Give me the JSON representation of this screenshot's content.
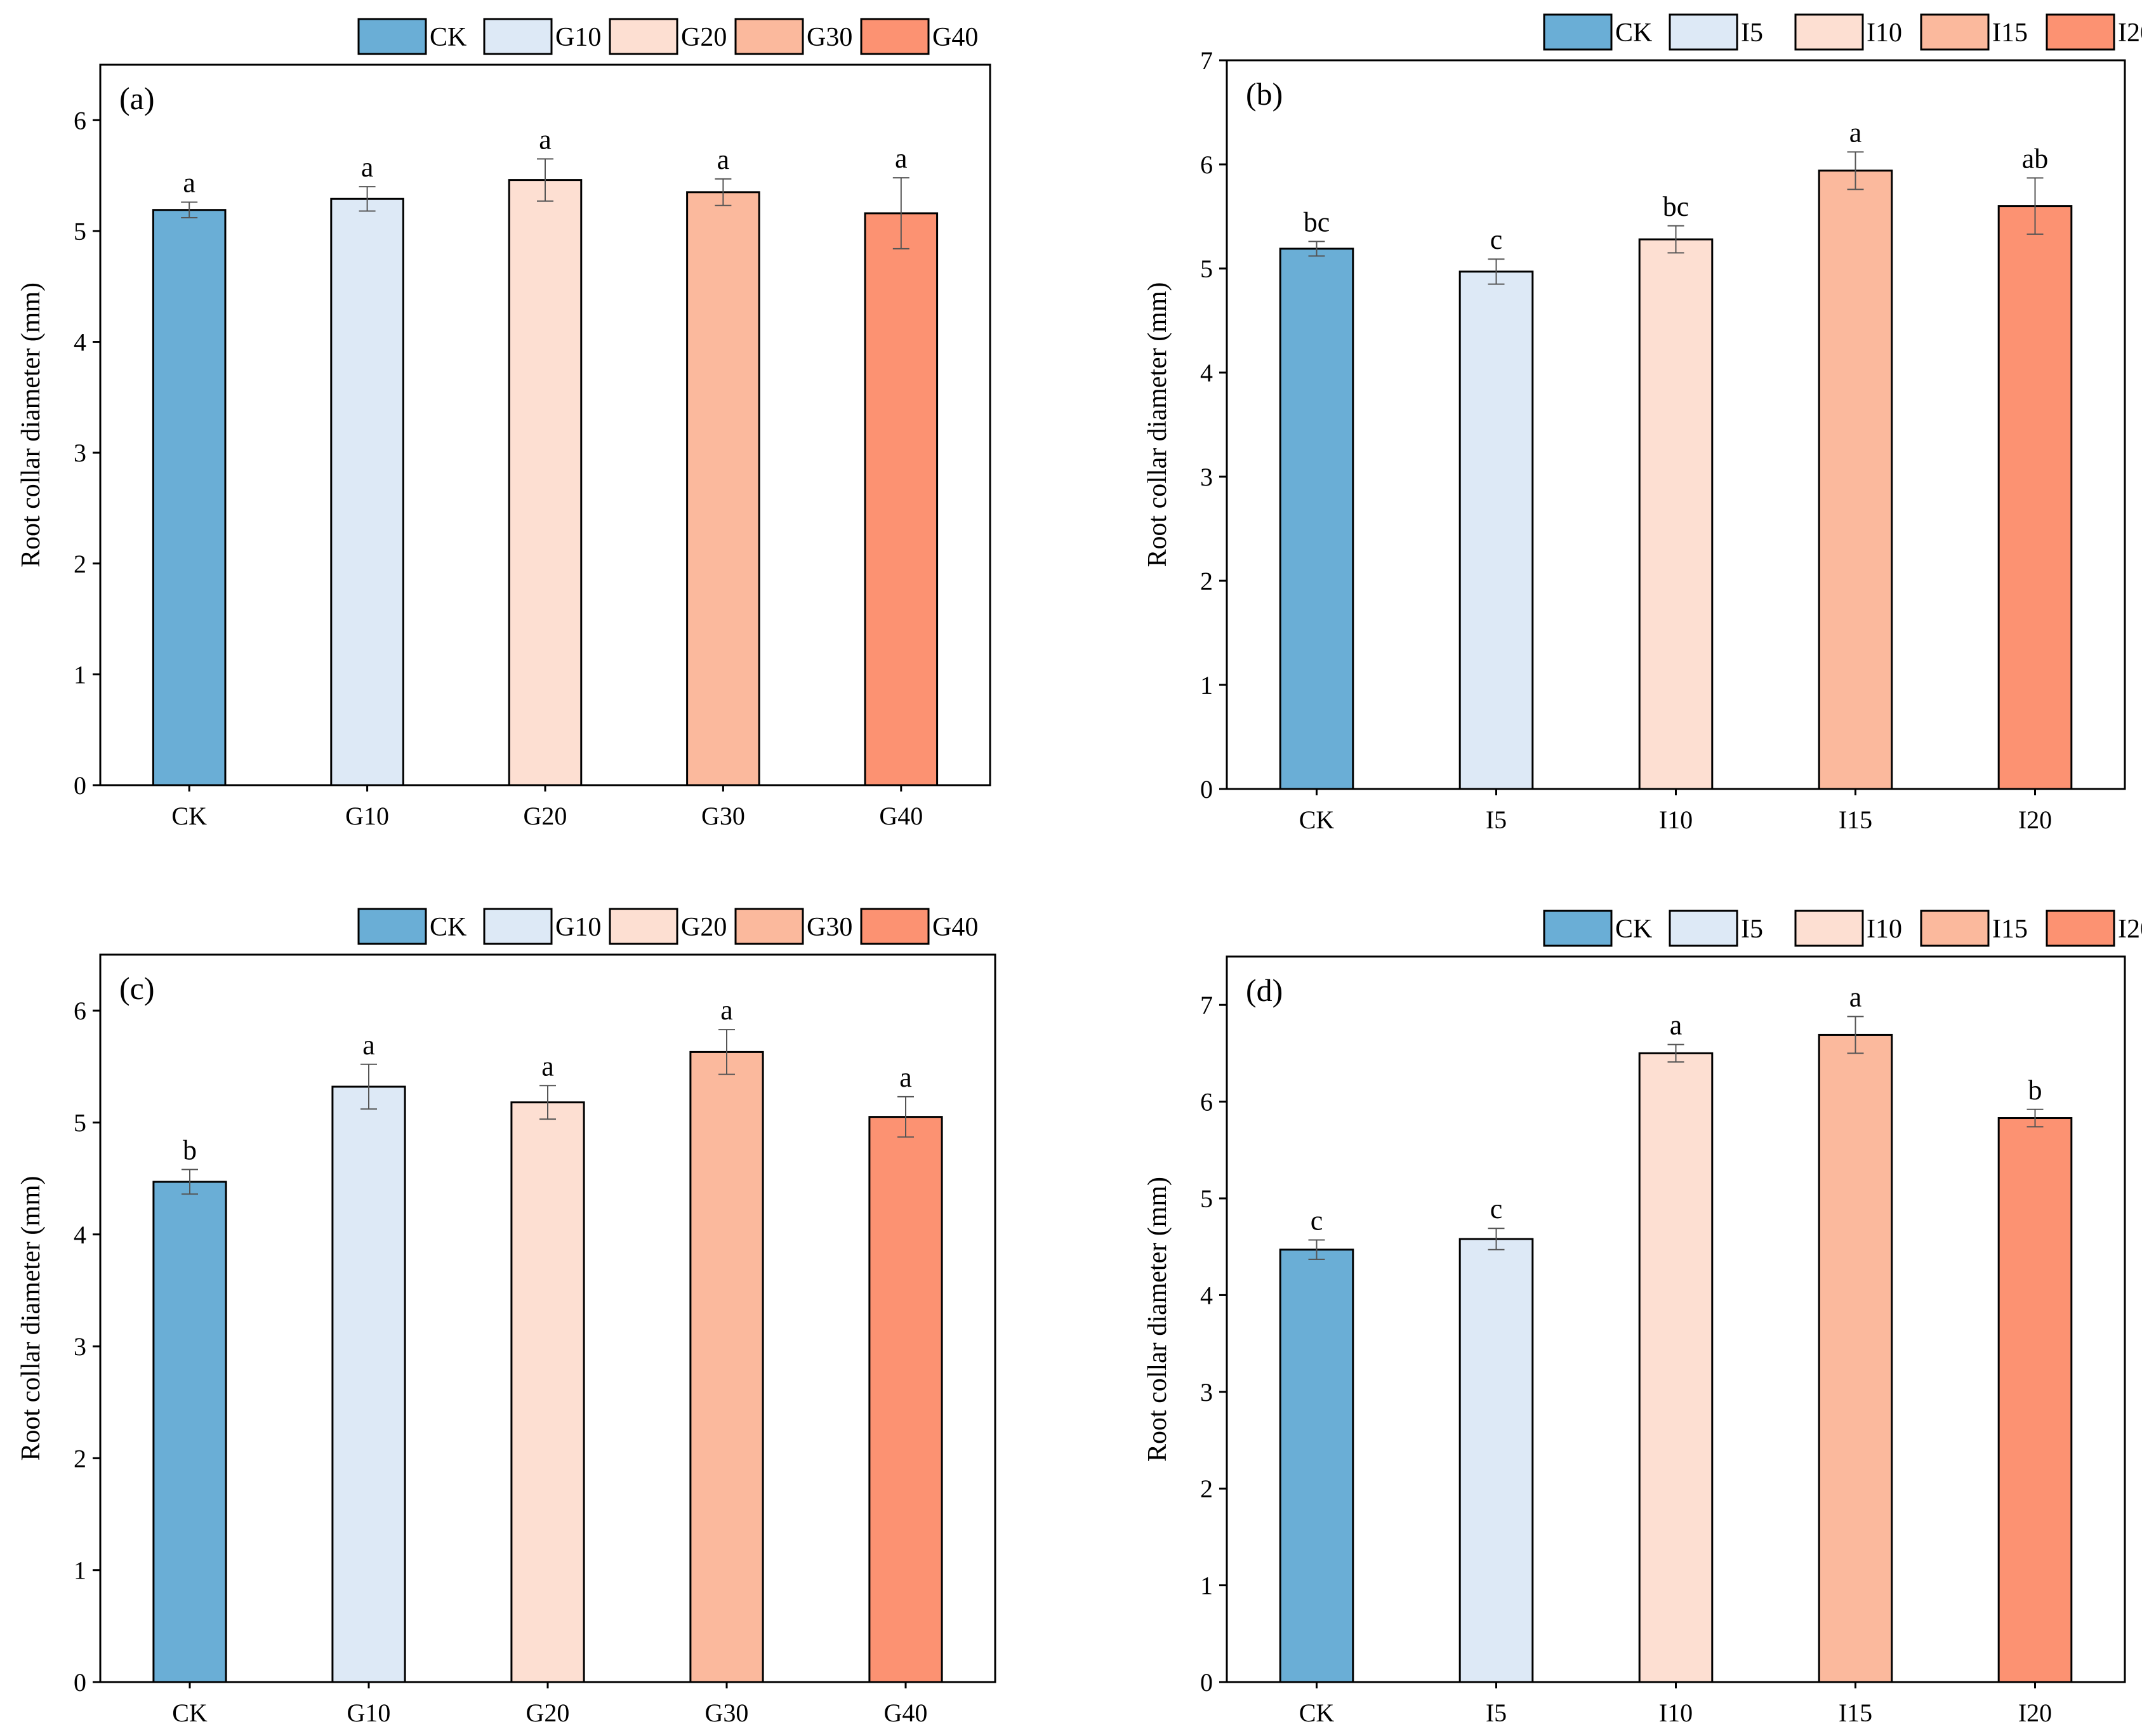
{
  "figure": {
    "colors": [
      "#6aaed6",
      "#dde9f6",
      "#fddfd2",
      "#fbb99d",
      "#fc9272"
    ]
  },
  "chart_data": [
    {
      "type": "bar",
      "panel_label": "(a)",
      "legend_position": "top",
      "categories": [
        "CK",
        "G10",
        "G20",
        "G30",
        "G40"
      ],
      "values": [
        5.19,
        5.29,
        5.46,
        5.35,
        5.16
      ],
      "errors": [
        0.07,
        0.11,
        0.19,
        0.12,
        0.32
      ],
      "significance": [
        "a",
        "a",
        "a",
        "a",
        "a"
      ],
      "ylabel": "Root collar diameter (mm)",
      "xlabel": "",
      "ylim": [
        0,
        6.5
      ],
      "yticks": [
        0,
        1,
        2,
        3,
        4,
        5,
        6
      ],
      "grid": false
    },
    {
      "type": "bar",
      "panel_label": "(b)",
      "legend_position": "top",
      "categories": [
        "CK",
        "I5",
        "I10",
        "I15",
        "I20"
      ],
      "values": [
        5.19,
        4.97,
        5.28,
        5.94,
        5.6
      ],
      "errors": [
        0.07,
        0.12,
        0.13,
        0.18,
        0.27
      ],
      "significance": [
        "bc",
        "c",
        "bc",
        "a",
        "ab"
      ],
      "ylabel": "Root collar diameter (mm)",
      "xlabel": "",
      "ylim": [
        0,
        7
      ],
      "yticks": [
        0,
        1,
        2,
        3,
        4,
        5,
        6,
        7
      ],
      "grid": false
    },
    {
      "type": "bar",
      "panel_label": "(c)",
      "legend_position": "top",
      "categories": [
        "CK",
        "G10",
        "G20",
        "G30",
        "G40"
      ],
      "values": [
        4.47,
        5.32,
        5.18,
        5.63,
        5.05
      ],
      "errors": [
        0.11,
        0.2,
        0.15,
        0.2,
        0.18
      ],
      "significance": [
        "b",
        "a",
        "a",
        "a",
        "a"
      ],
      "ylabel": "Root collar diameter (mm)",
      "xlabel": "",
      "ylim": [
        0,
        6.5
      ],
      "yticks": [
        0,
        1,
        2,
        3,
        4,
        5,
        6
      ],
      "grid": false
    },
    {
      "type": "bar",
      "panel_label": "(d)",
      "legend_position": "top",
      "categories": [
        "CK",
        "I5",
        "I10",
        "I15",
        "I20"
      ],
      "values": [
        4.47,
        4.58,
        6.5,
        6.69,
        5.83
      ],
      "errors": [
        0.1,
        0.11,
        0.09,
        0.19,
        0.09
      ],
      "significance": [
        "c",
        "c",
        "a",
        "a",
        "b"
      ],
      "ylabel": "Root collar diameter (mm)",
      "xlabel": "",
      "ylim": [
        0,
        7.5
      ],
      "yticks": [
        0,
        1,
        2,
        3,
        4,
        5,
        6,
        7
      ],
      "grid": false
    }
  ]
}
